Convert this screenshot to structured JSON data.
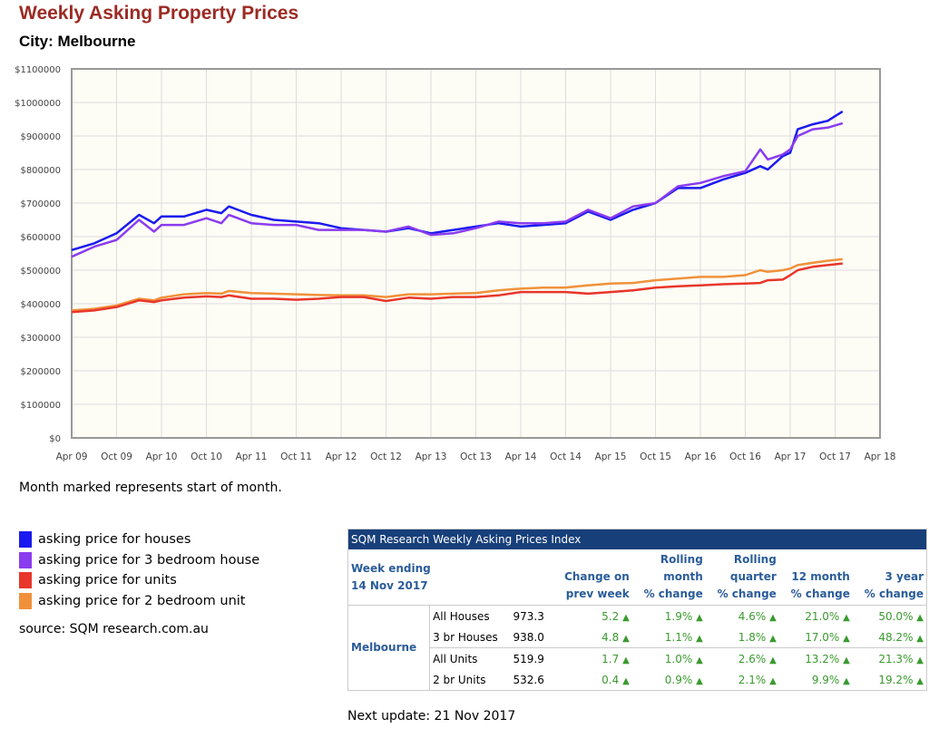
{
  "title": "Weekly Asking Property Prices",
  "city": "City: Melbourne",
  "note": "Month marked represents start of month.",
  "source": "source: SQM research.com.au",
  "next_update": "Next update: 21 Nov 2017",
  "legend": [
    {
      "label": "asking price for houses",
      "color": "#1a1aee"
    },
    {
      "label": "asking price for 3 bedroom house",
      "color": "#8a3cf0"
    },
    {
      "label": "asking price for units",
      "color": "#e8362a"
    },
    {
      "label": "asking price for 2 bedroom unit",
      "color": "#f0913a"
    }
  ],
  "chart_data": {
    "type": "line",
    "xlabel": "",
    "ylabel": "",
    "ylim": [
      0,
      1100000
    ],
    "yticks": [
      "$0",
      "$100000",
      "$200000",
      "$300000",
      "$400000",
      "$500000",
      "$600000",
      "$700000",
      "$800000",
      "$900000",
      "$1000000",
      "$1100000"
    ],
    "xticks": [
      "Apr 09",
      "Oct 09",
      "Apr 10",
      "Oct 10",
      "Apr 11",
      "Oct 11",
      "Apr 12",
      "Oct 12",
      "Apr 13",
      "Oct 13",
      "Apr 14",
      "Oct 14",
      "Apr 15",
      "Oct 15",
      "Apr 16",
      "Oct 16",
      "Apr 17",
      "Oct 17",
      "Apr 18"
    ],
    "xlim": [
      "2009-04",
      "2018-04"
    ],
    "grid": true,
    "x": [
      "2009-04",
      "2009-07",
      "2009-10",
      "2010-01",
      "2010-03",
      "2010-04",
      "2010-07",
      "2010-10",
      "2010-12",
      "2011-01",
      "2011-04",
      "2011-07",
      "2011-10",
      "2012-01",
      "2012-04",
      "2012-07",
      "2012-10",
      "2013-01",
      "2013-04",
      "2013-07",
      "2013-10",
      "2014-01",
      "2014-04",
      "2014-07",
      "2014-10",
      "2015-01",
      "2015-04",
      "2015-07",
      "2015-10",
      "2016-01",
      "2016-04",
      "2016-07",
      "2016-10",
      "2016-12",
      "2017-01",
      "2017-03",
      "2017-04",
      "2017-05",
      "2017-07",
      "2017-09",
      "2017-11"
    ],
    "series": [
      {
        "name": "asking price for houses",
        "color": "#1a1aee",
        "values": [
          560000,
          580000,
          610000,
          665000,
          640000,
          660000,
          660000,
          680000,
          670000,
          690000,
          665000,
          650000,
          645000,
          640000,
          625000,
          620000,
          615000,
          625000,
          610000,
          620000,
          630000,
          640000,
          630000,
          635000,
          640000,
          675000,
          650000,
          680000,
          700000,
          745000,
          745000,
          770000,
          790000,
          810000,
          800000,
          840000,
          850000,
          920000,
          935000,
          945000,
          973300
        ]
      },
      {
        "name": "asking price for 3 bedroom house",
        "color": "#8a3cf0",
        "values": [
          540000,
          570000,
          590000,
          650000,
          615000,
          635000,
          635000,
          655000,
          640000,
          665000,
          640000,
          635000,
          635000,
          620000,
          620000,
          620000,
          615000,
          630000,
          605000,
          610000,
          625000,
          645000,
          640000,
          640000,
          645000,
          680000,
          655000,
          690000,
          700000,
          750000,
          760000,
          780000,
          795000,
          860000,
          830000,
          845000,
          860000,
          900000,
          920000,
          925000,
          938000
        ]
      },
      {
        "name": "asking price for units",
        "color": "#e8362a",
        "values": [
          375000,
          380000,
          390000,
          410000,
          405000,
          410000,
          418000,
          422000,
          420000,
          425000,
          415000,
          415000,
          412000,
          415000,
          420000,
          420000,
          408000,
          418000,
          415000,
          420000,
          420000,
          425000,
          435000,
          435000,
          435000,
          430000,
          435000,
          440000,
          448000,
          452000,
          455000,
          458000,
          460000,
          462000,
          470000,
          472000,
          485000,
          500000,
          510000,
          515000,
          519900
        ]
      },
      {
        "name": "asking price for 2 bedroom unit",
        "color": "#f0913a",
        "values": [
          380000,
          385000,
          395000,
          415000,
          410000,
          418000,
          428000,
          432000,
          430000,
          438000,
          432000,
          430000,
          428000,
          426000,
          425000,
          425000,
          420000,
          428000,
          428000,
          430000,
          432000,
          440000,
          445000,
          448000,
          448000,
          455000,
          460000,
          462000,
          470000,
          475000,
          480000,
          480000,
          485000,
          500000,
          495000,
          500000,
          505000,
          515000,
          522000,
          528000,
          532600
        ]
      }
    ]
  },
  "table": {
    "caption": "SQM Research Weekly Asking Prices Index",
    "week_label": "Week ending",
    "week_date": "14 Nov 2017",
    "headers": [
      [
        "",
        "Change on",
        "prev week"
      ],
      [
        "Rolling",
        "month",
        "% change"
      ],
      [
        "Rolling",
        "quarter",
        "% change"
      ],
      [
        "",
        "12 month",
        "% change"
      ],
      [
        "",
        "3 year",
        "% change"
      ]
    ],
    "region": "Melbourne",
    "rows": [
      {
        "type": "All Houses",
        "value": "973.3",
        "c": [
          "5.2",
          "1.9%",
          "4.6%",
          "21.0%",
          "50.0%"
        ]
      },
      {
        "type": "3 br Houses",
        "value": "938.0",
        "c": [
          "4.8",
          "1.1%",
          "1.8%",
          "17.0%",
          "48.2%"
        ]
      },
      {
        "type": "All Units",
        "value": "519.9",
        "c": [
          "1.7",
          "1.0%",
          "2.6%",
          "13.2%",
          "21.3%"
        ]
      },
      {
        "type": "2 br Units",
        "value": "532.6",
        "c": [
          "0.4",
          "0.9%",
          "2.1%",
          "9.9%",
          "19.2%"
        ]
      }
    ],
    "up_symbol": "▲"
  }
}
